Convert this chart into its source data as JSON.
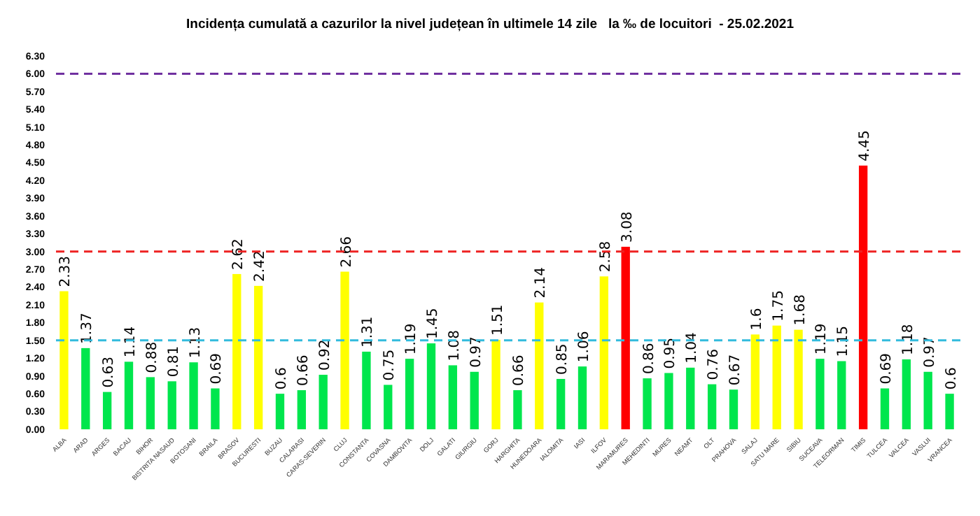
{
  "chart_data": {
    "type": "bar",
    "title": "Incidența cumulată a cazurilor la nivel județean în ultimele 14 zile   la ‰ de locuitori  - 25.02.2021",
    "categories": [
      "ALBA",
      "ARAD",
      "ARGES",
      "BACAU",
      "BIHOR",
      "BISTRITA NASAUD",
      "BOTOSANI",
      "BRAILA",
      "BRASOV",
      "BUCURESTI",
      "BUZAU",
      "CALARASI",
      "CARAS-SEVERIN",
      "CLUJ",
      "CONSTANTA",
      "COVASNA",
      "DAMBOVITA",
      "DOLJ",
      "GALATI",
      "GIURGIU",
      "GORJ",
      "HARGHITA",
      "HUNEDOARA",
      "IALOMITA",
      "IASI",
      "ILFOV",
      "MARAMURES",
      "MEHEDINTI",
      "MURES",
      "NEAMT",
      "OLT",
      "PRAHOVA",
      "SALAJ",
      "SATU MARE",
      "SIBIU",
      "SUCEAVA",
      "TELEORMAN",
      "TIMIS",
      "TULCEA",
      "VALCEA",
      "VASLUI",
      "VRANCEA"
    ],
    "values": [
      2.33,
      1.37,
      0.63,
      1.14,
      0.88,
      0.81,
      1.13,
      0.69,
      2.62,
      2.42,
      0.6,
      0.66,
      0.92,
      2.66,
      1.31,
      0.75,
      1.19,
      1.45,
      1.08,
      0.97,
      1.51,
      0.66,
      2.14,
      0.85,
      1.06,
      2.58,
      3.08,
      0.86,
      0.95,
      1.04,
      0.76,
      0.67,
      1.6,
      1.75,
      1.68,
      1.19,
      1.15,
      4.45,
      0.69,
      1.18,
      0.97,
      0.6
    ],
    "colors": [
      "#ffff00",
      "#00e64d",
      "#00e64d",
      "#00e64d",
      "#00e64d",
      "#00e64d",
      "#00e64d",
      "#00e64d",
      "#ffff00",
      "#ffff00",
      "#00e64d",
      "#00e64d",
      "#00e64d",
      "#ffff00",
      "#00e64d",
      "#00e64d",
      "#00e64d",
      "#00e64d",
      "#00e64d",
      "#00e64d",
      "#ffff00",
      "#00e64d",
      "#ffff00",
      "#00e64d",
      "#00e64d",
      "#ffff00",
      "#ff0000",
      "#00e64d",
      "#00e64d",
      "#00e64d",
      "#00e64d",
      "#00e64d",
      "#ffff00",
      "#ffff00",
      "#ffff00",
      "#00e64d",
      "#00e64d",
      "#ff0000",
      "#00e64d",
      "#00e64d",
      "#00e64d",
      "#00e64d"
    ],
    "ylim": [
      0,
      6.3
    ],
    "yticks": [
      {
        "value": 0,
        "label": "0.00"
      },
      {
        "value": 0.3,
        "label": "0.30"
      },
      {
        "value": 0.6,
        "label": "0.60"
      },
      {
        "value": 0.9,
        "label": "0.90"
      },
      {
        "value": 1.2,
        "label": "1.20"
      },
      {
        "value": 1.5,
        "label": "1.50"
      },
      {
        "value": 1.8,
        "label": "1.80"
      },
      {
        "value": 2.1,
        "label": "2.10"
      },
      {
        "value": 2.4,
        "label": "2.40"
      },
      {
        "value": 2.7,
        "label": "2.70"
      },
      {
        "value": 3,
        "label": "3.00"
      },
      {
        "value": 3.3,
        "label": "3.30"
      },
      {
        "value": 3.6,
        "label": "3.60"
      },
      {
        "value": 3.9,
        "label": "3.90"
      },
      {
        "value": 4.2,
        "label": "4.20"
      },
      {
        "value": 4.5,
        "label": "4.50"
      },
      {
        "value": 4.8,
        "label": "4.80"
      },
      {
        "value": 5.1,
        "label": "5.10"
      },
      {
        "value": 5.4,
        "label": "5.40"
      },
      {
        "value": 5.7,
        "label": "5.70"
      },
      {
        "value": 6,
        "label": "6.00"
      },
      {
        "value": 6.3,
        "label": "6.30"
      }
    ],
    "ref_lines": [
      {
        "axis": "y",
        "value": 1.5,
        "color": "#33bbdd",
        "line_style": "dashed"
      },
      {
        "axis": "y",
        "value": 3,
        "color": "#ee2222",
        "line_style": "dashed"
      },
      {
        "axis": "y",
        "value": 6,
        "color": "#7030a0",
        "line_style": "dashed"
      }
    ],
    "data_labels": true,
    "grid": false
  }
}
